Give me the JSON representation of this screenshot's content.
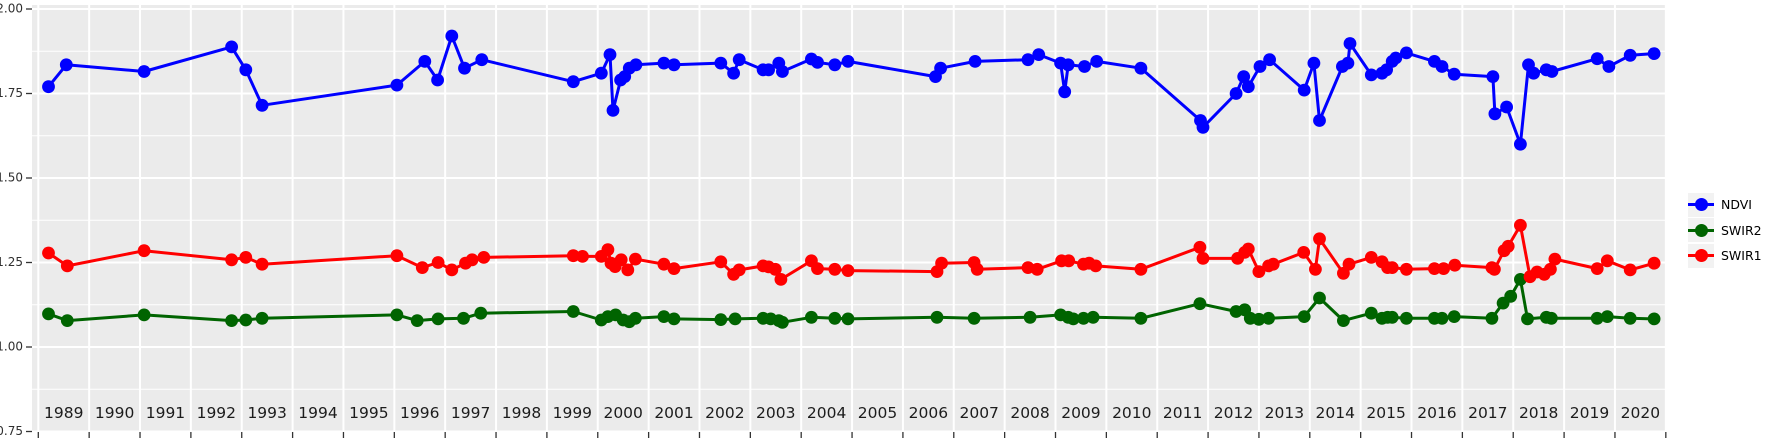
{
  "figure": {
    "background": "#ffffff",
    "panel_background": "#ebebeb",
    "grid_color": "#ffffff",
    "axis_text_color": "#2f2f2f",
    "tick_color": "#333333"
  },
  "axes": {
    "y": {
      "tick_labels": [
        "2.00",
        "1.75",
        "1.50",
        "1.25",
        "1.00",
        "0.75"
      ],
      "tick_values": [
        2.0,
        1.75,
        1.5,
        1.25,
        1.0,
        0.75
      ],
      "minor_values": [
        1.875,
        1.625,
        1.375,
        1.125,
        0.875
      ]
    },
    "x": {
      "tick_labels": [
        "1989",
        "1990",
        "1991",
        "1992",
        "1993",
        "1994",
        "1995",
        "1996",
        "1997",
        "1998",
        "1999",
        "2000",
        "2001",
        "2002",
        "2003",
        "2004",
        "2005",
        "2006",
        "2007",
        "2008",
        "2009",
        "2010",
        "2011",
        "2012",
        "2013",
        "2014",
        "2015",
        "2016",
        "2017",
        "2018",
        "2019",
        "2020"
      ],
      "boundary_years_start": 1989,
      "boundary_years_end": 2021
    }
  },
  "legend": {
    "key_background": "#f2f2f2",
    "items": [
      {
        "label": "NDVI",
        "color": "#0000ff"
      },
      {
        "label": "SWIR2",
        "color": "#006400"
      },
      {
        "label": "SWIR1",
        "color": "#ff0000"
      }
    ]
  },
  "chart_data": {
    "type": "line",
    "title": "",
    "xlabel": "",
    "ylabel": "",
    "xlim": [
      1988.87,
      2021.05
    ],
    "ylim": [
      0.75,
      2.0
    ],
    "grid": true,
    "legend_position": "right",
    "series": [
      {
        "name": "NDVI",
        "color": "#0000ff",
        "points": [
          [
            1989.2,
            1.77
          ],
          [
            1989.55,
            1.835
          ],
          [
            1991.08,
            1.815
          ],
          [
            1992.8,
            1.888
          ],
          [
            1993.08,
            1.82
          ],
          [
            1993.4,
            1.715
          ],
          [
            1996.05,
            1.775
          ],
          [
            1996.6,
            1.845
          ],
          [
            1996.85,
            1.79
          ],
          [
            1997.13,
            1.92
          ],
          [
            1997.38,
            1.825
          ],
          [
            1997.72,
            1.85
          ],
          [
            1999.52,
            1.785
          ],
          [
            2000.07,
            1.81
          ],
          [
            2000.24,
            1.865
          ],
          [
            2000.3,
            1.7
          ],
          [
            2000.45,
            1.79
          ],
          [
            2000.53,
            1.8
          ],
          [
            2000.62,
            1.825
          ],
          [
            2000.75,
            1.835
          ],
          [
            2001.3,
            1.84
          ],
          [
            2001.5,
            1.835
          ],
          [
            2002.42,
            1.84
          ],
          [
            2002.67,
            1.81
          ],
          [
            2002.78,
            1.85
          ],
          [
            2003.25,
            1.82
          ],
          [
            2003.36,
            1.82
          ],
          [
            2003.56,
            1.84
          ],
          [
            2003.63,
            1.815
          ],
          [
            2004.2,
            1.852
          ],
          [
            2004.32,
            1.842
          ],
          [
            2004.66,
            1.835
          ],
          [
            2004.92,
            1.845
          ],
          [
            2006.64,
            1.8
          ],
          [
            2006.74,
            1.825
          ],
          [
            2007.42,
            1.845
          ],
          [
            2008.46,
            1.85
          ],
          [
            2008.67,
            1.865
          ],
          [
            2009.1,
            1.84
          ],
          [
            2009.18,
            1.755
          ],
          [
            2009.25,
            1.835
          ],
          [
            2009.57,
            1.83
          ],
          [
            2009.81,
            1.845
          ],
          [
            2010.68,
            1.825
          ],
          [
            2011.85,
            1.67
          ],
          [
            2011.9,
            1.65
          ],
          [
            2012.55,
            1.75
          ],
          [
            2012.7,
            1.8
          ],
          [
            2012.79,
            1.77
          ],
          [
            2013.02,
            1.83
          ],
          [
            2013.21,
            1.85
          ],
          [
            2013.89,
            1.76
          ],
          [
            2014.08,
            1.84
          ],
          [
            2014.19,
            1.67
          ],
          [
            2014.64,
            1.83
          ],
          [
            2014.75,
            1.84
          ],
          [
            2014.79,
            1.898
          ],
          [
            2015.21,
            1.805
          ],
          [
            2015.42,
            1.81
          ],
          [
            2015.51,
            1.82
          ],
          [
            2015.62,
            1.845
          ],
          [
            2015.69,
            1.855
          ],
          [
            2015.9,
            1.87
          ],
          [
            2016.45,
            1.845
          ],
          [
            2016.6,
            1.83
          ],
          [
            2016.84,
            1.807
          ],
          [
            2017.6,
            1.8
          ],
          [
            2017.64,
            1.69
          ],
          [
            2017.87,
            1.71
          ],
          [
            2018.14,
            1.6
          ],
          [
            2018.3,
            1.835
          ],
          [
            2018.4,
            1.81
          ],
          [
            2018.65,
            1.82
          ],
          [
            2018.76,
            1.815
          ],
          [
            2019.65,
            1.853
          ],
          [
            2019.88,
            1.83
          ],
          [
            2020.3,
            1.863
          ],
          [
            2020.77,
            1.868
          ]
        ]
      },
      {
        "name": "SWIR2",
        "color": "#006400",
        "points": [
          [
            1989.2,
            1.098
          ],
          [
            1989.57,
            1.078
          ],
          [
            1991.08,
            1.095
          ],
          [
            1992.8,
            1.078
          ],
          [
            1993.08,
            1.08
          ],
          [
            1993.4,
            1.085
          ],
          [
            1996.05,
            1.095
          ],
          [
            1996.45,
            1.078
          ],
          [
            1996.86,
            1.083
          ],
          [
            1997.36,
            1.085
          ],
          [
            1997.7,
            1.1
          ],
          [
            1999.52,
            1.105
          ],
          [
            2000.07,
            1.08
          ],
          [
            2000.2,
            1.09
          ],
          [
            2000.35,
            1.095
          ],
          [
            2000.5,
            1.08
          ],
          [
            2000.62,
            1.075
          ],
          [
            2000.74,
            1.085
          ],
          [
            2001.3,
            1.09
          ],
          [
            2001.5,
            1.083
          ],
          [
            2002.42,
            1.081
          ],
          [
            2002.7,
            1.083
          ],
          [
            2003.25,
            1.085
          ],
          [
            2003.4,
            1.083
          ],
          [
            2003.56,
            1.078
          ],
          [
            2003.63,
            1.073
          ],
          [
            2004.2,
            1.088
          ],
          [
            2004.66,
            1.085
          ],
          [
            2004.92,
            1.083
          ],
          [
            2006.67,
            1.088
          ],
          [
            2007.4,
            1.085
          ],
          [
            2008.5,
            1.088
          ],
          [
            2009.1,
            1.095
          ],
          [
            2009.25,
            1.088
          ],
          [
            2009.35,
            1.083
          ],
          [
            2009.55,
            1.085
          ],
          [
            2009.74,
            1.088
          ],
          [
            2010.68,
            1.085
          ],
          [
            2011.84,
            1.128
          ],
          [
            2012.55,
            1.105
          ],
          [
            2012.72,
            1.11
          ],
          [
            2012.83,
            1.085
          ],
          [
            2013.0,
            1.082
          ],
          [
            2013.19,
            1.085
          ],
          [
            2013.89,
            1.09
          ],
          [
            2014.19,
            1.145
          ],
          [
            2014.66,
            1.078
          ],
          [
            2015.21,
            1.1
          ],
          [
            2015.42,
            1.085
          ],
          [
            2015.53,
            1.088
          ],
          [
            2015.62,
            1.088
          ],
          [
            2015.9,
            1.085
          ],
          [
            2016.45,
            1.085
          ],
          [
            2016.6,
            1.085
          ],
          [
            2016.84,
            1.09
          ],
          [
            2017.58,
            1.085
          ],
          [
            2017.8,
            1.13
          ],
          [
            2017.95,
            1.15
          ],
          [
            2018.14,
            1.2
          ],
          [
            2018.28,
            1.083
          ],
          [
            2018.65,
            1.088
          ],
          [
            2018.75,
            1.085
          ],
          [
            2019.65,
            1.085
          ],
          [
            2019.85,
            1.09
          ],
          [
            2020.3,
            1.085
          ],
          [
            2020.77,
            1.083
          ]
        ]
      },
      {
        "name": "SWIR1",
        "color": "#ff0000",
        "points": [
          [
            1989.2,
            1.278
          ],
          [
            1989.57,
            1.24
          ],
          [
            1991.08,
            1.285
          ],
          [
            1992.8,
            1.258
          ],
          [
            1993.08,
            1.265
          ],
          [
            1993.4,
            1.245
          ],
          [
            1996.05,
            1.27
          ],
          [
            1996.55,
            1.235
          ],
          [
            1996.86,
            1.25
          ],
          [
            1997.13,
            1.228
          ],
          [
            1997.4,
            1.248
          ],
          [
            1997.53,
            1.258
          ],
          [
            1997.76,
            1.265
          ],
          [
            1999.52,
            1.27
          ],
          [
            1999.7,
            1.268
          ],
          [
            2000.07,
            1.268
          ],
          [
            2000.2,
            1.288
          ],
          [
            2000.26,
            1.248
          ],
          [
            2000.34,
            1.238
          ],
          [
            2000.46,
            1.258
          ],
          [
            2000.59,
            1.228
          ],
          [
            2000.74,
            1.26
          ],
          [
            2001.3,
            1.245
          ],
          [
            2001.5,
            1.232
          ],
          [
            2002.42,
            1.252
          ],
          [
            2002.67,
            1.215
          ],
          [
            2002.78,
            1.228
          ],
          [
            2003.25,
            1.24
          ],
          [
            2003.36,
            1.237
          ],
          [
            2003.49,
            1.23
          ],
          [
            2003.6,
            1.2
          ],
          [
            2004.2,
            1.255
          ],
          [
            2004.32,
            1.232
          ],
          [
            2004.66,
            1.23
          ],
          [
            2004.92,
            1.226
          ],
          [
            2006.67,
            1.223
          ],
          [
            2006.76,
            1.248
          ],
          [
            2007.4,
            1.25
          ],
          [
            2007.46,
            1.23
          ],
          [
            2008.46,
            1.235
          ],
          [
            2008.64,
            1.23
          ],
          [
            2009.12,
            1.255
          ],
          [
            2009.26,
            1.255
          ],
          [
            2009.55,
            1.245
          ],
          [
            2009.66,
            1.248
          ],
          [
            2009.79,
            1.24
          ],
          [
            2010.68,
            1.23
          ],
          [
            2011.84,
            1.295
          ],
          [
            2011.9,
            1.262
          ],
          [
            2012.58,
            1.262
          ],
          [
            2012.72,
            1.28
          ],
          [
            2012.79,
            1.29
          ],
          [
            2013.0,
            1.223
          ],
          [
            2013.19,
            1.24
          ],
          [
            2013.28,
            1.245
          ],
          [
            2013.88,
            1.28
          ],
          [
            2014.11,
            1.23
          ],
          [
            2014.19,
            1.32
          ],
          [
            2014.66,
            1.218
          ],
          [
            2014.77,
            1.245
          ],
          [
            2015.21,
            1.265
          ],
          [
            2015.42,
            1.252
          ],
          [
            2015.53,
            1.235
          ],
          [
            2015.62,
            1.235
          ],
          [
            2015.9,
            1.23
          ],
          [
            2016.45,
            1.232
          ],
          [
            2016.63,
            1.232
          ],
          [
            2016.85,
            1.242
          ],
          [
            2017.58,
            1.235
          ],
          [
            2017.63,
            1.23
          ],
          [
            2017.82,
            1.285
          ],
          [
            2017.9,
            1.298
          ],
          [
            2018.14,
            1.36
          ],
          [
            2018.33,
            1.208
          ],
          [
            2018.47,
            1.222
          ],
          [
            2018.61,
            1.215
          ],
          [
            2018.73,
            1.23
          ],
          [
            2018.82,
            1.26
          ],
          [
            2019.65,
            1.232
          ],
          [
            2019.85,
            1.255
          ],
          [
            2020.3,
            1.228
          ],
          [
            2020.77,
            1.248
          ]
        ]
      }
    ]
  }
}
